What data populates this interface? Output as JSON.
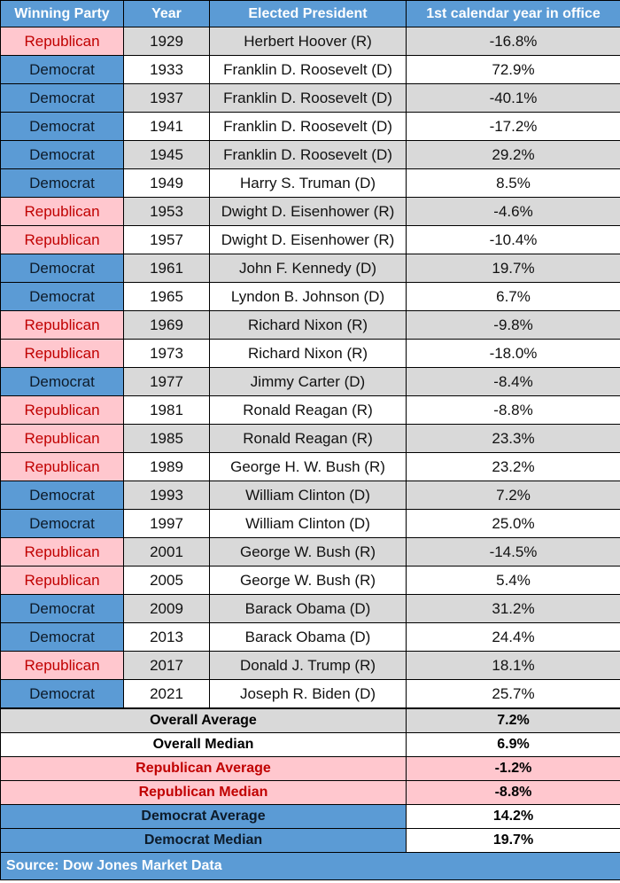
{
  "chart_data": {
    "type": "table",
    "columns": [
      "Winning Party",
      "Year",
      "Elected President",
      "1st calendar year in office"
    ],
    "rows": [
      {
        "party": "Republican",
        "year": "1929",
        "president": "Herbert Hoover (R)",
        "return": "-16.8%"
      },
      {
        "party": "Democrat",
        "year": "1933",
        "president": "Franklin D. Roosevelt (D)",
        "return": "72.9%"
      },
      {
        "party": "Democrat",
        "year": "1937",
        "president": "Franklin D. Roosevelt (D)",
        "return": "-40.1%"
      },
      {
        "party": "Democrat",
        "year": "1941",
        "president": "Franklin D. Roosevelt (D)",
        "return": "-17.2%"
      },
      {
        "party": "Democrat",
        "year": "1945",
        "president": "Franklin D. Roosevelt (D)",
        "return": "29.2%"
      },
      {
        "party": "Democrat",
        "year": "1949",
        "president": "Harry S. Truman (D)",
        "return": "8.5%"
      },
      {
        "party": "Republican",
        "year": "1953",
        "president": "Dwight D. Eisenhower (R)",
        "return": "-4.6%"
      },
      {
        "party": "Republican",
        "year": "1957",
        "president": "Dwight D. Eisenhower (R)",
        "return": "-10.4%"
      },
      {
        "party": "Democrat",
        "year": "1961",
        "president": "John F. Kennedy (D)",
        "return": "19.7%"
      },
      {
        "party": "Democrat",
        "year": "1965",
        "president": "Lyndon B. Johnson (D)",
        "return": "6.7%"
      },
      {
        "party": "Republican",
        "year": "1969",
        "president": "Richard Nixon (R)",
        "return": "-9.8%"
      },
      {
        "party": "Republican",
        "year": "1973",
        "president": "Richard Nixon (R)",
        "return": "-18.0%"
      },
      {
        "party": "Democrat",
        "year": "1977",
        "president": "Jimmy Carter (D)",
        "return": "-8.4%"
      },
      {
        "party": "Republican",
        "year": "1981",
        "president": "Ronald Reagan (R)",
        "return": "-8.8%"
      },
      {
        "party": "Republican",
        "year": "1985",
        "president": "Ronald Reagan (R)",
        "return": "23.3%"
      },
      {
        "party": "Republican",
        "year": "1989",
        "president": "George H. W. Bush (R)",
        "return": "23.2%"
      },
      {
        "party": "Democrat",
        "year": "1993",
        "president": "William Clinton (D)",
        "return": "7.2%"
      },
      {
        "party": "Democrat",
        "year": "1997",
        "president": "William Clinton (D)",
        "return": "25.0%"
      },
      {
        "party": "Republican",
        "year": "2001",
        "president": "George W. Bush (R)",
        "return": "-14.5%"
      },
      {
        "party": "Republican",
        "year": "2005",
        "president": "George W. Bush (R)",
        "return": "5.4%"
      },
      {
        "party": "Democrat",
        "year": "2009",
        "president": "Barack Obama (D)",
        "return": "31.2%"
      },
      {
        "party": "Democrat",
        "year": "2013",
        "president": "Barack Obama (D)",
        "return": "24.4%"
      },
      {
        "party": "Republican",
        "year": "2017",
        "president": "Donald J. Trump (R)",
        "return": "18.1%"
      },
      {
        "party": "Democrat",
        "year": "2021",
        "president": "Joseph R. Biden (D)",
        "return": "25.7%"
      }
    ],
    "summary": [
      {
        "label": "Overall Average",
        "value": "7.2%",
        "style": "gray"
      },
      {
        "label": "Overall Median",
        "value": "6.9%",
        "style": "white"
      },
      {
        "label": "Republican Average",
        "value": "-1.2%",
        "style": "red"
      },
      {
        "label": "Republican Median",
        "value": "-8.8%",
        "style": "red"
      },
      {
        "label": "Democrat Average",
        "value": "14.2%",
        "style": "blue"
      },
      {
        "label": "Democrat Median",
        "value": "19.7%",
        "style": "blue"
      }
    ],
    "source": "Source: Dow Jones Market Data",
    "colors": {
      "republican_fill": "#ffc7ce",
      "republican_text": "#c00000",
      "democrat_fill": "#5b9bd5",
      "header_fill": "#5b9bd5",
      "alt_row_gray": "#d9d9d9"
    }
  }
}
